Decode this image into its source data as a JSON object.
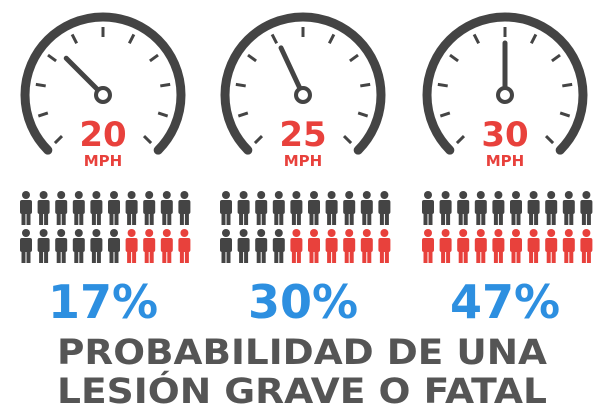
{
  "panels": [
    {
      "speed": "20",
      "unit": "MPH",
      "percent": "17%",
      "highlighted": 4
    },
    {
      "speed": "25",
      "unit": "MPH",
      "percent": "30%",
      "highlighted": 6
    },
    {
      "speed": "30",
      "unit": "MPH",
      "percent": "47%",
      "highlighted": 10
    }
  ],
  "title": [
    "PROBABILIDAD DE UNA",
    "LESIÓN GRAVE O FATAL"
  ]
}
